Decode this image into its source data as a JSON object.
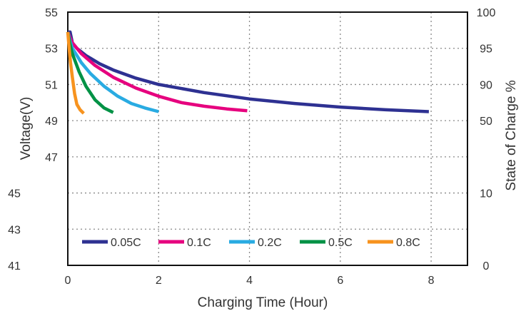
{
  "chart_data": {
    "type": "line",
    "xlabel": "Charging Time (Hour)",
    "ylabel": "Voltage(V)",
    "y2label": "State of Charge %",
    "xlim": [
      0,
      8.8
    ],
    "ylim": [
      41,
      55
    ],
    "x_ticks": [
      0,
      2,
      4,
      6,
      8
    ],
    "y_ticks": [
      55,
      53,
      51,
      49,
      47,
      45,
      43,
      41
    ],
    "y2_ticks": [
      {
        "label": "100",
        "at_voltage": 55
      },
      {
        "label": "95",
        "at_voltage": 53
      },
      {
        "label": "90",
        "at_voltage": 51
      },
      {
        "label": "50",
        "at_voltage": 49
      },
      {
        "label": "10",
        "at_voltage": 45
      },
      {
        "label": "0",
        "at_voltage": 41
      }
    ],
    "grid": true,
    "legend_position": "bottom",
    "series": [
      {
        "name": "0.05C",
        "color": "#2e3192",
        "x": [
          0,
          0.05,
          0.1,
          0.2,
          0.4,
          0.7,
          1.0,
          1.5,
          2.0,
          3.0,
          4.0,
          5.0,
          6.0,
          7.0,
          7.95
        ],
        "y": [
          53.9,
          53.9,
          53.3,
          53.0,
          52.6,
          52.15,
          51.8,
          51.35,
          51.0,
          50.55,
          50.2,
          49.95,
          49.75,
          49.6,
          49.5
        ]
      },
      {
        "name": "0.1C",
        "color": "#e6007e",
        "x": [
          0,
          0.05,
          0.1,
          0.3,
          0.6,
          1.0,
          1.5,
          2.0,
          2.5,
          3.0,
          3.5,
          3.95
        ],
        "y": [
          53.9,
          53.6,
          53.3,
          52.7,
          52.05,
          51.4,
          50.8,
          50.35,
          50.0,
          49.8,
          49.65,
          49.55
        ]
      },
      {
        "name": "0.2C",
        "color": "#29abe2",
        "x": [
          0,
          0.05,
          0.1,
          0.3,
          0.5,
          0.8,
          1.1,
          1.4,
          1.7,
          2.0
        ],
        "y": [
          53.9,
          53.4,
          53.0,
          52.2,
          51.6,
          50.9,
          50.35,
          49.95,
          49.7,
          49.5
        ]
      },
      {
        "name": "0.5C",
        "color": "#009245",
        "x": [
          0,
          0.05,
          0.1,
          0.25,
          0.4,
          0.6,
          0.8,
          1.0
        ],
        "y": [
          53.9,
          53.2,
          52.7,
          51.7,
          50.9,
          50.15,
          49.7,
          49.45
        ]
      },
      {
        "name": "0.8C",
        "color": "#f7931e",
        "x": [
          0,
          0.03,
          0.06,
          0.1,
          0.15,
          0.2,
          0.27,
          0.35
        ],
        "y": [
          53.9,
          53.0,
          52.2,
          51.4,
          50.5,
          49.9,
          49.6,
          49.4
        ]
      }
    ]
  }
}
